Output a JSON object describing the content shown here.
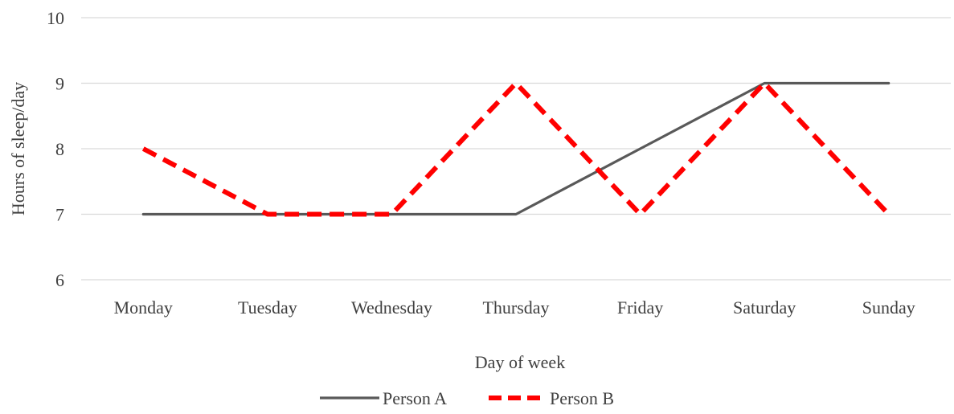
{
  "chart_data": {
    "type": "line",
    "title": "",
    "xlabel": "Day of week",
    "ylabel": "Hours of sleep/day",
    "categories": [
      "Monday",
      "Tuesday",
      "Wednesday",
      "Thursday",
      "Friday",
      "Saturday",
      "Sunday"
    ],
    "ylim": [
      6,
      10
    ],
    "yticks": [
      6,
      7,
      8,
      9,
      10
    ],
    "grid": true,
    "legend": "bottom",
    "series": [
      {
        "name": "Person A",
        "values": [
          7,
          7,
          7,
          7,
          8,
          9,
          9
        ],
        "color": "#595959",
        "style": "solid"
      },
      {
        "name": "Person B",
        "values": [
          8,
          7,
          7,
          9,
          7,
          9,
          7
        ],
        "color": "#ff0000",
        "style": "dashed"
      }
    ]
  }
}
